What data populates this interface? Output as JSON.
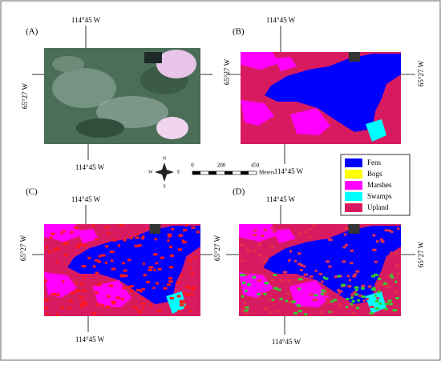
{
  "panels": [
    {
      "label": "(A)",
      "top": "114°45 W",
      "bottom": "114°45 W",
      "left": "65°27 W"
    },
    {
      "label": "(B)",
      "top": "114°45 W",
      "bottom": "114°45 W",
      "left": "65°27 W",
      "right": "65°27 W"
    },
    {
      "label": "(C)",
      "top": "114°45 W",
      "bottom": "114°45 W",
      "left": "65°27 W"
    },
    {
      "label": "(D)",
      "top": "114°45 W",
      "bottom": "114°45 W",
      "left": "65°27 W",
      "right": "65°27 W"
    }
  ],
  "legend": [
    {
      "name": "Fens",
      "color": "#0000ff"
    },
    {
      "name": "Bogs",
      "color": "#ffff00"
    },
    {
      "name": "Marshes",
      "color": "#ff00ff"
    },
    {
      "name": "Swamps",
      "color": "#00ffff"
    },
    {
      "name": "Upland",
      "color": "#d81b60"
    }
  ],
  "scale": {
    "labels": [
      "0",
      "200",
      "450"
    ],
    "unit": "Meters"
  },
  "compass": {
    "n": "N",
    "s": "S",
    "e": "E",
    "w": "W"
  }
}
